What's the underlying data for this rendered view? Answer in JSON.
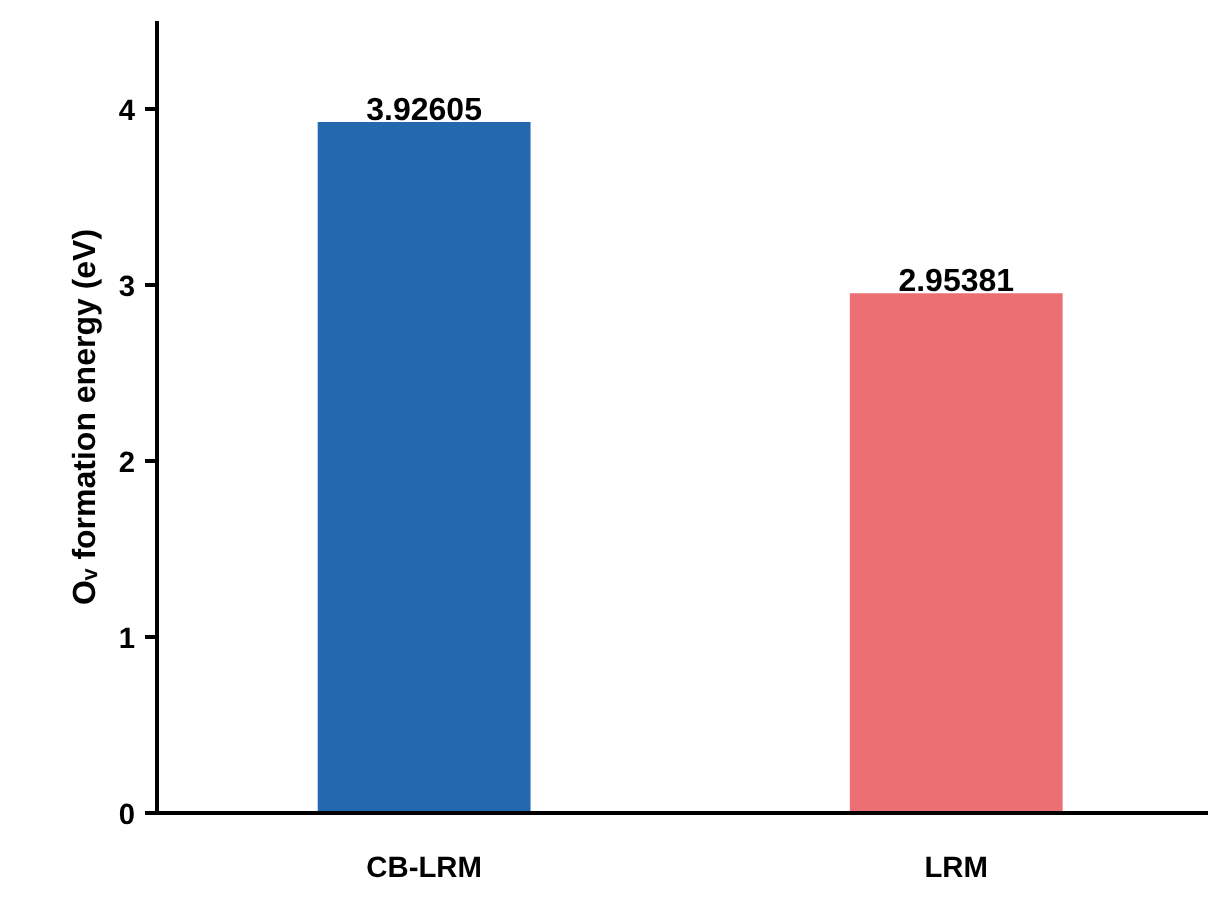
{
  "chart_data": {
    "type": "bar",
    "ylabel": "Oᵥ formation energy (eV)",
    "categories": [
      "CB-LRM",
      "LRM"
    ],
    "values": [
      3.92605,
      2.95381
    ],
    "colors": [
      "#2269b0",
      "#ec6f73"
    ],
    "ylim": [
      0,
      4.5
    ],
    "yticks": [
      0,
      1,
      2,
      3,
      4
    ],
    "data_labels": true,
    "grid": false
  }
}
